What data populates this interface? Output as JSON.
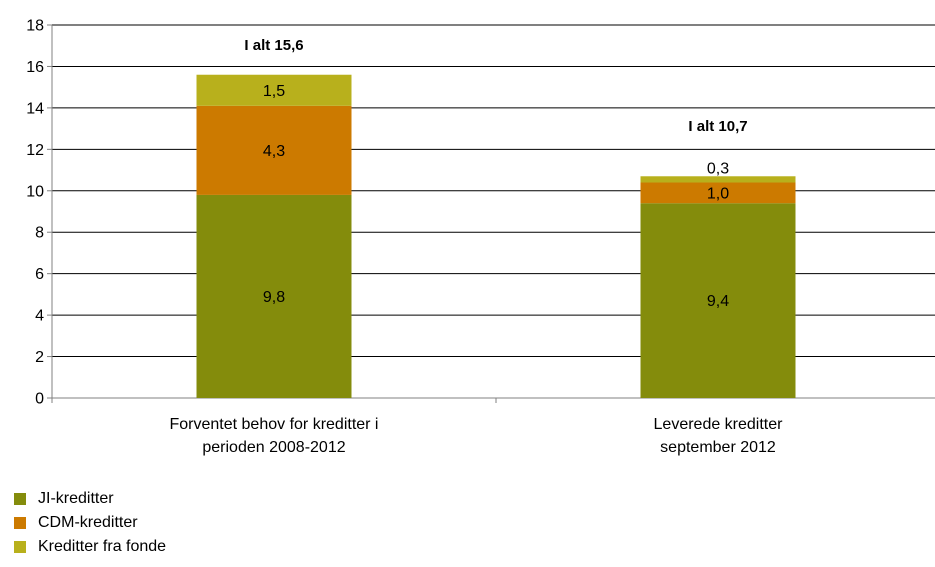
{
  "chart_data": {
    "type": "bar",
    "stacked": true,
    "categories": [
      [
        "Forventet behov for kreditter i",
        "perioden 2008-2012"
      ],
      [
        "Leverede kreditter",
        "september 2012"
      ]
    ],
    "series": [
      {
        "name": "JI-kreditter",
        "values": [
          9.8,
          9.4
        ],
        "color": "#848c0c",
        "labels": [
          "9,8",
          "9,4"
        ]
      },
      {
        "name": "CDM-kreditter",
        "values": [
          4.3,
          1.0
        ],
        "color": "#cc7a00",
        "labels": [
          "4,3",
          "1,0"
        ]
      },
      {
        "name": "Kreditter fra fonde",
        "values": [
          1.5,
          0.3
        ],
        "color": "#b8b01c",
        "labels": [
          "1,5",
          "0,3"
        ]
      }
    ],
    "totals": [
      "I alt 15,6",
      "I alt 10,7"
    ],
    "ylim": [
      0,
      18
    ],
    "yticks": [
      0,
      2,
      4,
      6,
      8,
      10,
      12,
      14,
      16,
      18
    ],
    "grid": true,
    "legend": "bottom-left"
  }
}
